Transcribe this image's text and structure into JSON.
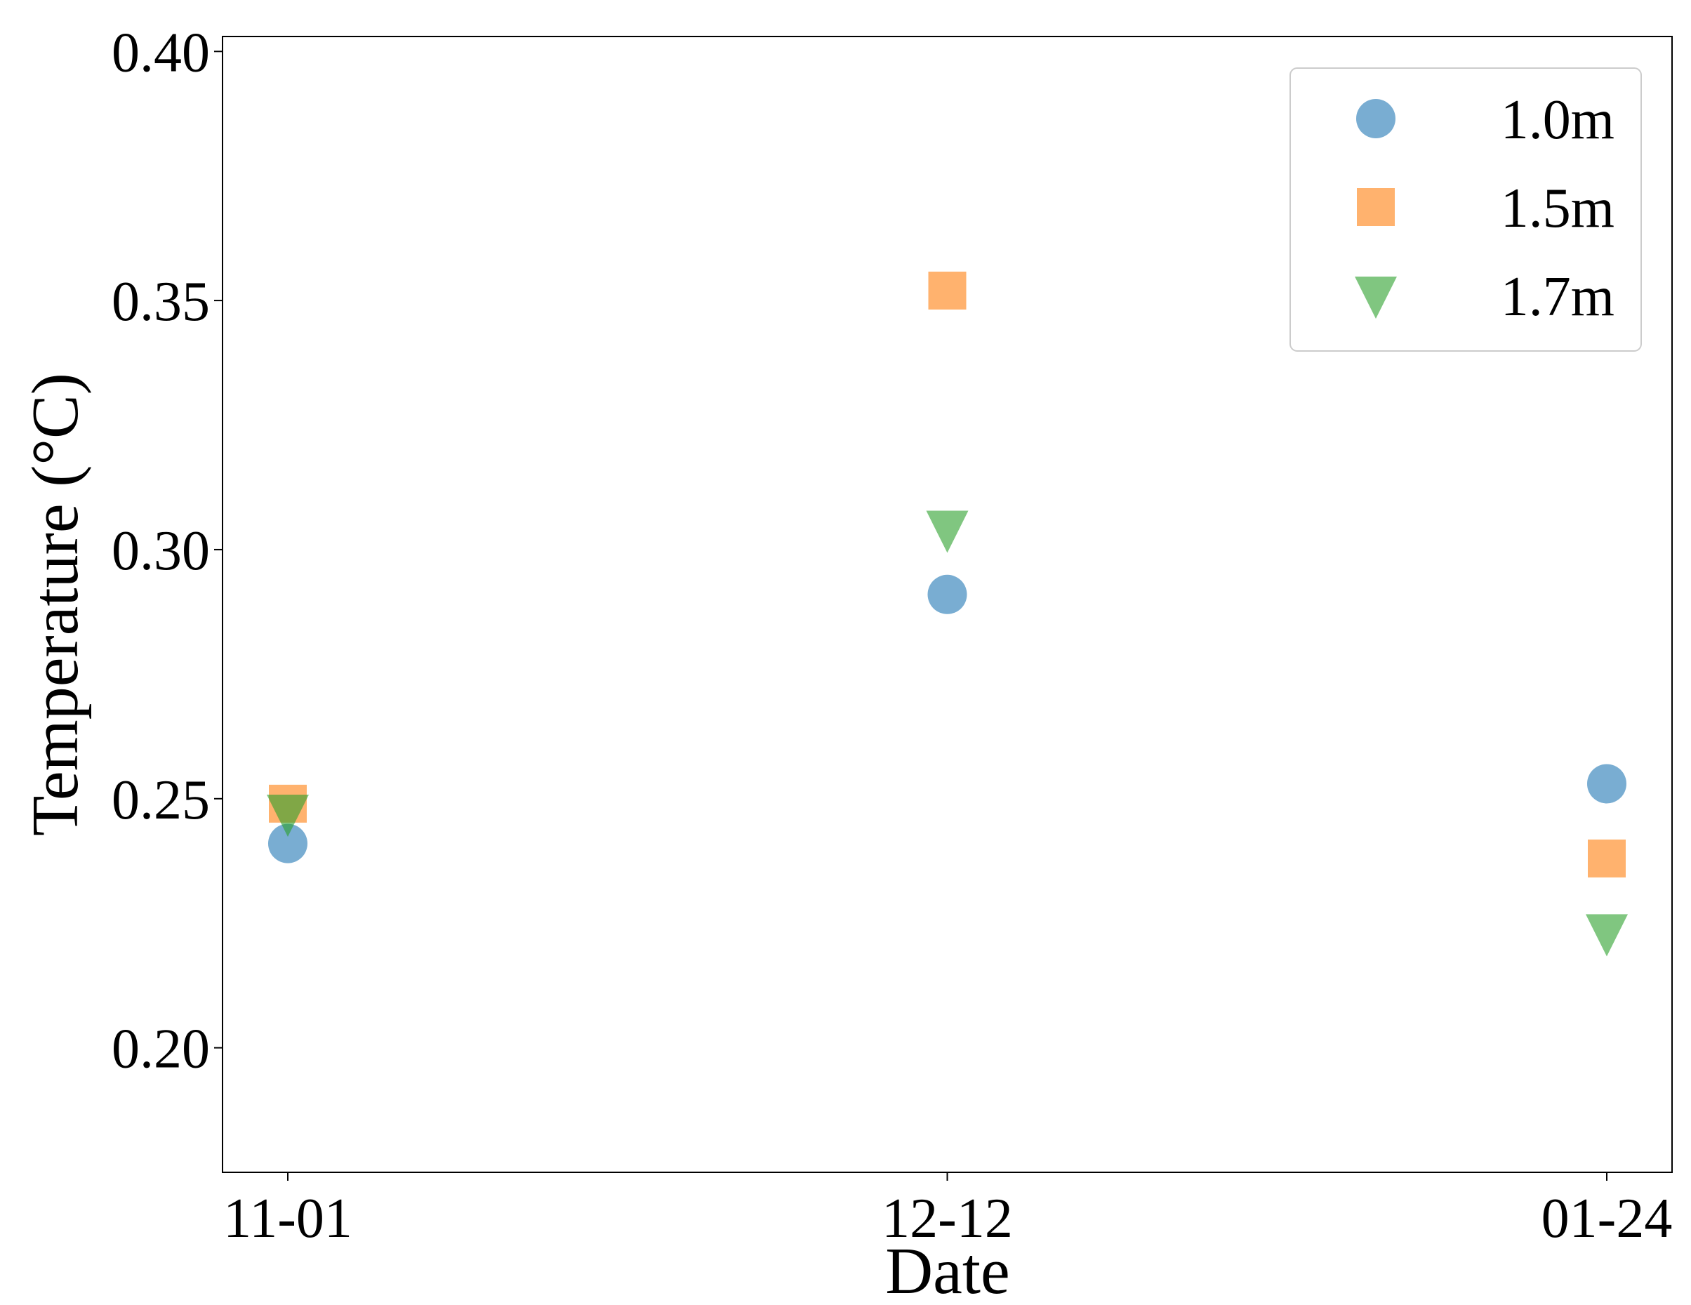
{
  "chart_data": {
    "type": "scatter",
    "title": "",
    "xlabel": "Date",
    "ylabel": "Temperature (°C)",
    "categories": [
      "11-01",
      "12-12",
      "01-24"
    ],
    "ylim": [
      0.175,
      0.403
    ],
    "yticks": [
      "0.20",
      "0.25",
      "0.30",
      "0.35",
      "0.40"
    ],
    "grid": false,
    "legend_position": "top-right",
    "series": [
      {
        "name": "1.0m",
        "marker": "circle",
        "color": "#1f77b4",
        "values": [
          0.241,
          0.291,
          0.253
        ]
      },
      {
        "name": "1.5m",
        "marker": "square",
        "color": "#ff7f0e",
        "values": [
          0.249,
          0.352,
          0.238
        ]
      },
      {
        "name": "1.7m",
        "marker": "triangle-down",
        "color": "#2ca02c",
        "values": [
          0.247,
          0.304,
          0.223
        ]
      }
    ]
  }
}
